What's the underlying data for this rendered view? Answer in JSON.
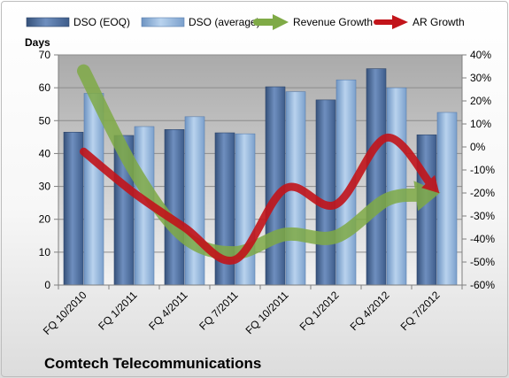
{
  "chart_data": {
    "type": "bar",
    "title": "Comtech Telecommunications",
    "ylabel": "Days",
    "ylim": [
      0,
      70
    ],
    "y_ticks": [
      0,
      10,
      20,
      30,
      40,
      50,
      60,
      70
    ],
    "y2lim": [
      -60,
      40
    ],
    "y2_ticks": [
      "-60%",
      "-50%",
      "-40%",
      "-30%",
      "-20%",
      "-10%",
      "0%",
      "10%",
      "20%",
      "30%",
      "40%"
    ],
    "categories": [
      "FQ 10/2010",
      "FQ 1/2011",
      "FQ 4/2011",
      "FQ 7/2011",
      "FQ 10/2011",
      "FQ 1/2012",
      "FQ 4/2012",
      "FQ 7/2012"
    ],
    "bar_series": [
      {
        "name": "DSO (EOQ)",
        "values": [
          46.5,
          45.5,
          47.3,
          46.3,
          60.3,
          56.3,
          65.8,
          45.7
        ]
      },
      {
        "name": "DSO (average)",
        "values": [
          58.3,
          48.2,
          51.2,
          46.0,
          58.8,
          62.4,
          60.0,
          52.5
        ]
      }
    ],
    "line_series": [
      {
        "name": "Revenue Growth",
        "axis": "secondary",
        "values": [
          33,
          -10,
          -39,
          -46,
          -38,
          -39,
          -23,
          -20
        ]
      },
      {
        "name": "AR Growth",
        "axis": "secondary",
        "values": [
          -2,
          -20,
          -35,
          -49,
          -18,
          -25,
          4,
          -19
        ]
      }
    ],
    "grid": true,
    "legend_position": "top"
  },
  "colors": {
    "dso_eoq": "#4f6f9e",
    "dso_average": "#93b6dc",
    "revenue_growth": "#7faa46",
    "ar_growth": "#c2141a",
    "plot_background": "#b5b5b5"
  }
}
